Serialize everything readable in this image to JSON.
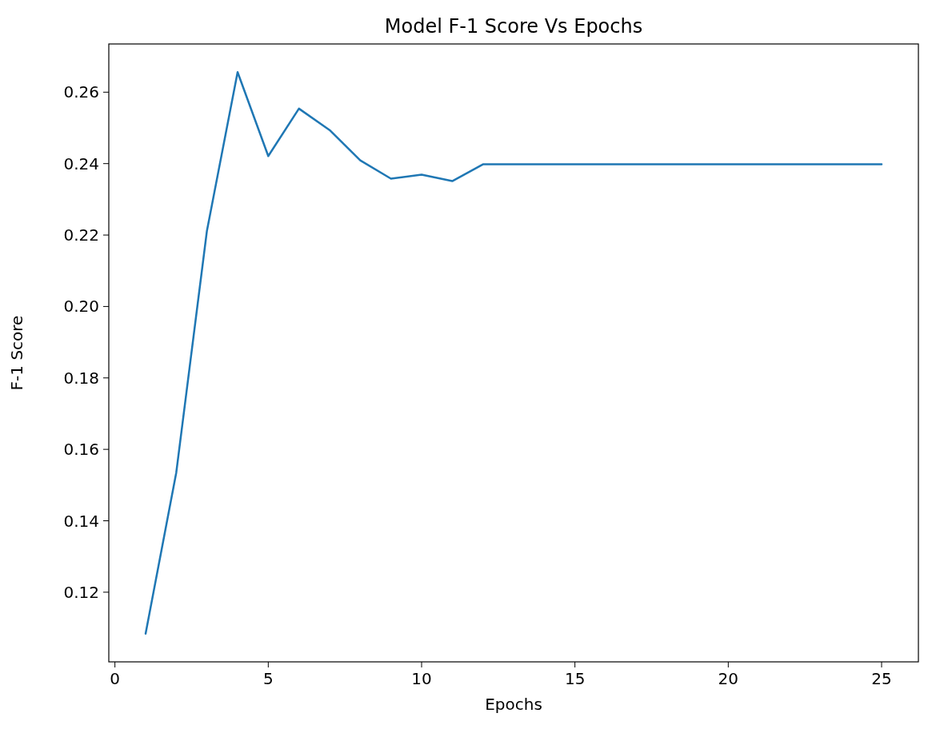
{
  "chart_data": {
    "type": "line",
    "title": "Model F-1 Score Vs Epochs",
    "xlabel": "Epochs",
    "ylabel": "F-1 Score",
    "x": [
      1,
      2,
      3,
      4,
      5,
      6,
      7,
      8,
      9,
      10,
      11,
      12,
      13,
      14,
      15,
      16,
      17,
      18,
      19,
      20,
      21,
      22,
      23,
      24,
      25
    ],
    "series": [
      {
        "color": "#1f77b4",
        "values": [
          0.1084,
          0.1535,
          0.2212,
          0.2656,
          0.2421,
          0.2554,
          0.2494,
          0.2409,
          0.2358,
          0.2369,
          0.2351,
          0.2398,
          0.2398,
          0.2398,
          0.2398,
          0.2398,
          0.2398,
          0.2398,
          0.2398,
          0.2398,
          0.2398,
          0.2398,
          0.2398,
          0.2398,
          0.2398
        ]
      }
    ],
    "xlim": [
      -0.2,
      26.2
    ],
    "xticks": [
      0,
      5,
      10,
      15,
      20,
      25
    ],
    "ylim": [
      0.1005,
      0.2735
    ],
    "yticks": [
      {
        "value": 0.12,
        "label": "0.12"
      },
      {
        "value": 0.14,
        "label": "0.14"
      },
      {
        "value": 0.16,
        "label": "0.16"
      },
      {
        "value": 0.18,
        "label": "0.18"
      },
      {
        "value": 0.2,
        "label": "0.20"
      },
      {
        "value": 0.22,
        "label": "0.22"
      },
      {
        "value": 0.24,
        "label": "0.24"
      },
      {
        "value": 0.26,
        "label": "0.26"
      }
    ],
    "grid": false,
    "marker": "none",
    "line_style": "solid"
  }
}
